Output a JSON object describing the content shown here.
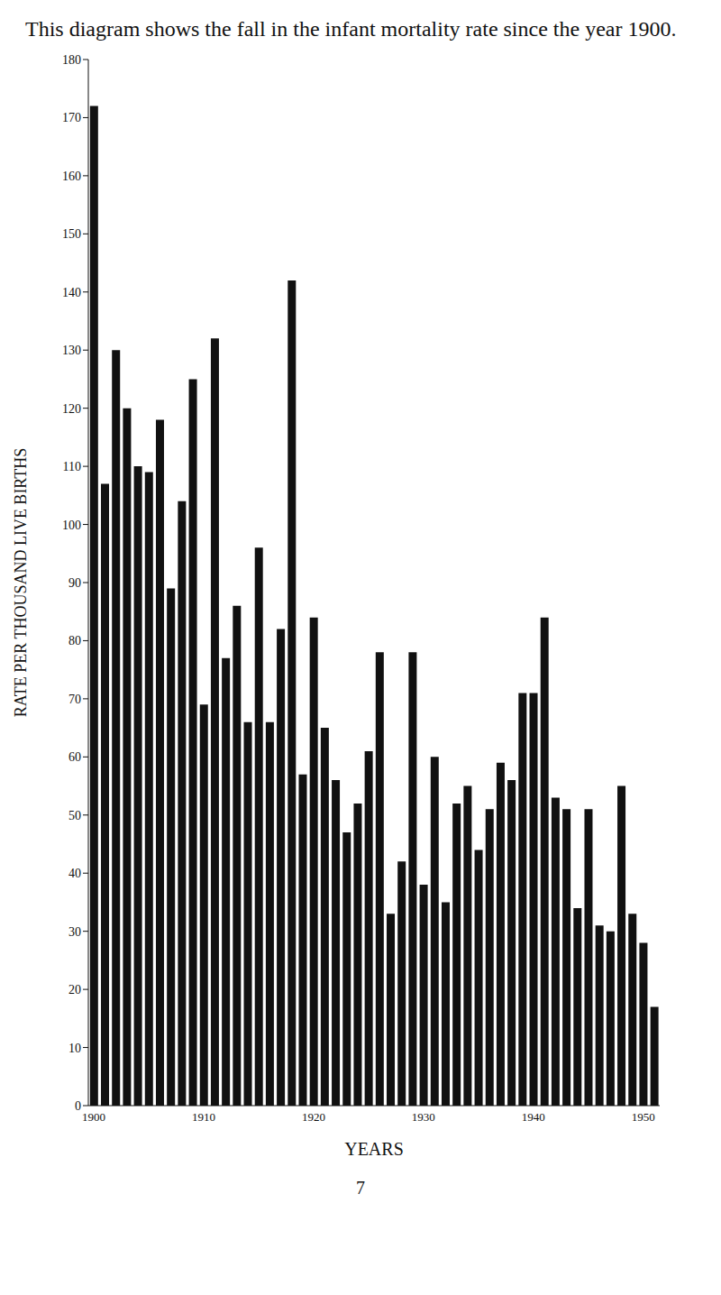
{
  "chart_data": {
    "type": "bar",
    "title": "This diagram shows the fall in the infant mortality rate since the year 1900.",
    "x_label": "YEARS",
    "y_label": "RATE PER THOUSAND LIVE BIRTHS",
    "annotations": [
      "7"
    ],
    "categories": [
      "1900",
      null,
      null,
      null,
      null,
      null,
      null,
      null,
      null,
      null,
      "1910",
      null,
      null,
      null,
      null,
      null,
      null,
      null,
      null,
      null,
      "1920",
      null,
      null,
      null,
      null,
      null,
      null,
      null,
      null,
      null,
      "1930",
      null,
      null,
      null,
      null,
      null,
      null,
      null,
      null,
      null,
      "1940",
      null,
      null,
      null,
      null,
      null,
      null,
      null,
      null,
      null,
      "1950",
      null
    ],
    "values": [
      172,
      107,
      130,
      120,
      110,
      109,
      118,
      89,
      104,
      125,
      69,
      132,
      77,
      86,
      66,
      96,
      66,
      82,
      142,
      57,
      84,
      65,
      56,
      47,
      52,
      61,
      78,
      33,
      42,
      78,
      38,
      60,
      35,
      52,
      55,
      44,
      51,
      59,
      56,
      71,
      71,
      84,
      53,
      51,
      34,
      51,
      31,
      30,
      55,
      33,
      28,
      17
    ],
    "color": "#111111",
    "ylim": [
      0,
      180
    ],
    "yticks": [
      0,
      10,
      20,
      30,
      40,
      50,
      60,
      70,
      80,
      90,
      100,
      110,
      120,
      130,
      140,
      150,
      160,
      170,
      180
    ],
    "grid": false
  }
}
